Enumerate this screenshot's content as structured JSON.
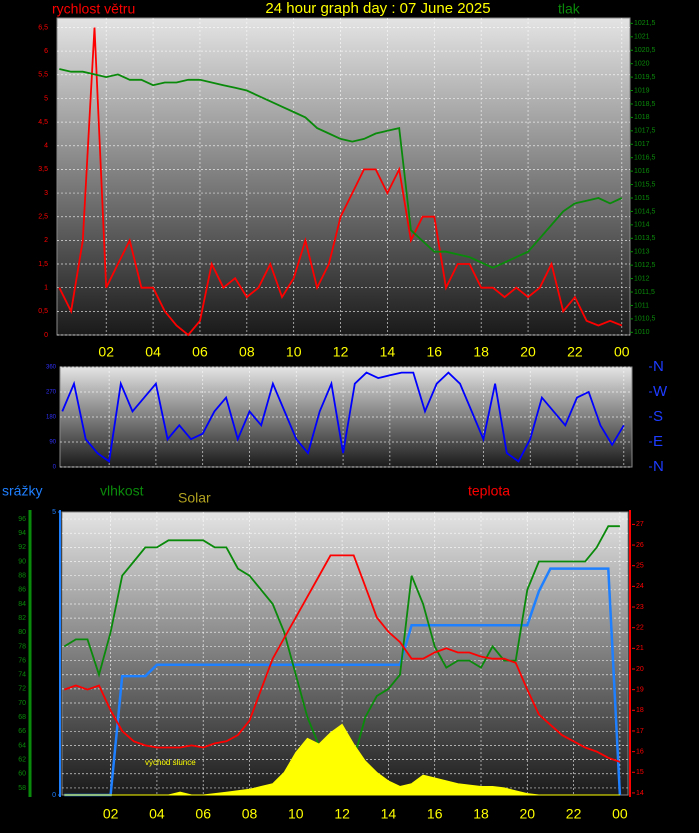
{
  "chart_data": [
    {
      "type": "line",
      "title": "24 hour graph day : 07 June 2025",
      "grid": true,
      "x": [
        0,
        0.5,
        1,
        1.5,
        2,
        2.5,
        3,
        3.5,
        4,
        4.5,
        5,
        5.5,
        6,
        6.5,
        7,
        7.5,
        8,
        8.5,
        9,
        9.5,
        10,
        10.5,
        11,
        11.5,
        12,
        12.5,
        13,
        13.5,
        14,
        14.5,
        15,
        15.5,
        16,
        16.5,
        17,
        17.5,
        18,
        18.5,
        19,
        19.5,
        20,
        20.5,
        21,
        21.5,
        22,
        22.5,
        23,
        23.5,
        24
      ],
      "xlim": [
        -0.1,
        24.35
      ],
      "xticks": [
        {
          "value": 2,
          "label": "02"
        },
        {
          "value": 4,
          "label": "04"
        },
        {
          "value": 6,
          "label": "06"
        },
        {
          "value": 8,
          "label": "08"
        },
        10,
        12,
        14,
        16,
        18,
        20,
        22,
        {
          "value": 24,
          "label": "00"
        }
      ],
      "ylim": [
        0,
        6.7
      ],
      "yticks": [
        0,
        {
          "value": 0.5,
          "label": "0,5"
        },
        1,
        {
          "value": 1.5,
          "label": "1,5"
        },
        2,
        {
          "value": 2.5,
          "label": "2,5"
        },
        3,
        {
          "value": 3.5,
          "label": "3,5"
        },
        4,
        {
          "value": 4.5,
          "label": "4,5"
        },
        5,
        {
          "value": 5.5,
          "label": "5,5"
        },
        6,
        {
          "value": 6.5,
          "label": "6,5"
        }
      ],
      "y2lim": [
        1009.9,
        1021.7
      ],
      "y2ticks": [
        1010,
        {
          "value": 1010.5,
          "label": "1010,5"
        },
        1011,
        {
          "value": 1011.5,
          "label": "1011,5"
        },
        1012,
        {
          "value": 1012.5,
          "label": "1012,5"
        },
        1013,
        {
          "value": 1013.5,
          "label": "1013,5"
        },
        1014,
        {
          "value": 1014.5,
          "label": "1014,5"
        },
        1015,
        {
          "value": 1015.5,
          "label": "1015,5"
        },
        1016,
        {
          "value": 1016.5,
          "label": "1016,5"
        },
        1017,
        {
          "value": 1017.5,
          "label": "1017,5"
        },
        1018,
        {
          "value": 1018.5,
          "label": "1018,5"
        },
        1019,
        {
          "value": 1019.5,
          "label": "1019,5"
        },
        1020,
        {
          "value": 1020.5,
          "label": "1020,5"
        },
        1021,
        {
          "value": 1021.5,
          "label": "1021,5"
        }
      ],
      "series": [
        {
          "name": "rychlost větru",
          "color": "#ff0000",
          "values": [
            1,
            0.5,
            2,
            6.5,
            1,
            1.5,
            2,
            1,
            1,
            0.5,
            0.2,
            0,
            0.3,
            1.5,
            1,
            1.2,
            0.8,
            1,
            1.5,
            0.8,
            1.2,
            2,
            1,
            1.5,
            2.5,
            3,
            3.5,
            3.5,
            3,
            3.5,
            2,
            2.5,
            2.5,
            1,
            1.5,
            1.5,
            1,
            1,
            0.8,
            1,
            0.8,
            1,
            1.5,
            0.5,
            0.8,
            0.3,
            0.2,
            0.3,
            0.2
          ]
        },
        {
          "name": "tlak",
          "color": "#0a8a0a",
          "axis": "y2",
          "values": [
            1019.8,
            1019.7,
            1019.7,
            1019.6,
            1019.5,
            1019.6,
            1019.4,
            1019.4,
            1019.2,
            1019.3,
            1019.3,
            1019.4,
            1019.4,
            1019.3,
            1019.2,
            1019.1,
            1019,
            1018.8,
            1018.6,
            1018.4,
            1018.2,
            1018,
            1017.6,
            1017.4,
            1017.2,
            1017.1,
            1017.2,
            1017.4,
            1017.5,
            1017.6,
            1013.8,
            1013.4,
            1013,
            1013,
            1012.9,
            1012.8,
            1012.6,
            1012.4,
            1012.6,
            1012.8,
            1013,
            1013.5,
            1014,
            1014.5,
            1014.8,
            1014.9,
            1015,
            1014.8,
            1015
          ]
        }
      ]
    },
    {
      "type": "line",
      "grid": true,
      "x": [
        0,
        0.5,
        1,
        1.5,
        2,
        2.5,
        3,
        3.5,
        4,
        4.5,
        5,
        5.5,
        6,
        6.5,
        7,
        7.5,
        8,
        8.5,
        9,
        9.5,
        10,
        10.5,
        11,
        11.5,
        12,
        12.5,
        13,
        13.5,
        14,
        14.5,
        15,
        15.5,
        16,
        16.5,
        17,
        17.5,
        18,
        18.5,
        19,
        19.5,
        20,
        20.5,
        21,
        21.5,
        22,
        22.5,
        23,
        23.5,
        24
      ],
      "xlim": [
        -0.1,
        24.35
      ],
      "xticks": [
        {
          "value": 2,
          "label": "02"
        },
        {
          "value": 4,
          "label": "04"
        },
        {
          "value": 6,
          "label": "06"
        },
        {
          "value": 8,
          "label": "08"
        },
        10,
        12,
        14,
        16,
        18,
        20,
        22,
        {
          "value": 24,
          "label": "00"
        }
      ],
      "ylim": [
        0,
        360
      ],
      "yticks": [
        0,
        90,
        180,
        270,
        360
      ],
      "y2lim": [
        0,
        360
      ],
      "y2ticks": [
        {
          "value": 360,
          "label": "N"
        },
        {
          "value": 270,
          "label": "W"
        },
        {
          "value": 180,
          "label": "S"
        },
        {
          "value": 90,
          "label": "E"
        },
        {
          "value": 0,
          "label": "N"
        }
      ],
      "series": [
        {
          "color": "#0000ff",
          "values": [
            200,
            300,
            100,
            50,
            20,
            300,
            200,
            250,
            300,
            100,
            150,
            100,
            120,
            200,
            250,
            100,
            200,
            150,
            300,
            200,
            100,
            50,
            200,
            300,
            50,
            300,
            340,
            320,
            330,
            340,
            340,
            200,
            300,
            340,
            300,
            200,
            100,
            300,
            50,
            20,
            100,
            250,
            200,
            150,
            250,
            270,
            150,
            80,
            150
          ]
        }
      ]
    },
    {
      "type": "line",
      "grid": true,
      "annotation": "východ slunce",
      "x": [
        0,
        0.5,
        1,
        1.5,
        2,
        2.5,
        3,
        3.5,
        4,
        4.5,
        5,
        5.5,
        6,
        6.5,
        7,
        7.5,
        8,
        8.5,
        9,
        9.5,
        10,
        10.5,
        11,
        11.5,
        12,
        12.5,
        13,
        13.5,
        14,
        14.5,
        15,
        15.5,
        16,
        16.5,
        17,
        17.5,
        18,
        18.5,
        19,
        19.5,
        20,
        20.5,
        21,
        21.5,
        22,
        22.5,
        23,
        23.5,
        24
      ],
      "xlim": [
        -0.1,
        24.35
      ],
      "xticks": [
        {
          "value": 2,
          "label": "02"
        },
        {
          "value": 4,
          "label": "04"
        },
        {
          "value": 6,
          "label": "06"
        },
        {
          "value": 8,
          "label": "08"
        },
        10,
        12,
        14,
        16,
        18,
        20,
        22,
        {
          "value": 24,
          "label": "00"
        }
      ],
      "ylim": [
        57,
        97
      ],
      "yticks": [
        58,
        60,
        62,
        64,
        66,
        68,
        70,
        72,
        74,
        76,
        78,
        80,
        82,
        84,
        86,
        88,
        90,
        92,
        94,
        96
      ],
      "y2lim": [
        13.9,
        27.6
      ],
      "y2ticks": [
        14,
        15,
        16,
        17,
        18,
        19,
        20,
        21,
        22,
        23,
        24,
        25,
        26,
        27
      ],
      "y3lim": [
        0,
        5
      ],
      "y3ticks": [
        0,
        5
      ],
      "y4lim": [
        0,
        1000
      ],
      "series": [
        {
          "name": "srážky",
          "color": "#1e7fff",
          "axis": "y3",
          "values": [
            0,
            0,
            0,
            0,
            0,
            2.1,
            2.1,
            2.1,
            2.3,
            2.3,
            2.3,
            2.3,
            2.3,
            2.3,
            2.3,
            2.3,
            2.3,
            2.3,
            2.3,
            2.3,
            2.3,
            2.3,
            2.3,
            2.3,
            2.3,
            2.3,
            2.3,
            2.3,
            2.3,
            2.3,
            3,
            3,
            3,
            3,
            3,
            3,
            3,
            3,
            3,
            3,
            3,
            3.6,
            4,
            4,
            4,
            4,
            4,
            4,
            0
          ]
        },
        {
          "name": "vlhkost",
          "color": "#0a8a0a",
          "values": [
            78,
            79,
            79,
            74,
            80,
            88,
            90,
            92,
            92,
            93,
            93,
            93,
            93,
            92,
            92,
            89,
            88,
            86,
            84,
            80,
            74,
            68,
            64,
            62,
            60,
            62,
            68,
            71,
            72,
            74,
            88,
            84,
            78,
            75,
            76,
            76,
            75,
            78,
            76,
            76,
            86,
            90,
            90,
            90,
            90,
            90,
            92,
            95,
            95
          ]
        },
        {
          "name": "Solar",
          "color": "#ffff00",
          "axis": "y4",
          "values": [
            0,
            0,
            0,
            0,
            0,
            0,
            0,
            0,
            0,
            0,
            10,
            0,
            0,
            5,
            10,
            15,
            20,
            30,
            40,
            80,
            150,
            200,
            180,
            220,
            250,
            180,
            120,
            80,
            50,
            30,
            40,
            70,
            60,
            50,
            40,
            35,
            30,
            30,
            25,
            15,
            5,
            0,
            0,
            0,
            0,
            0,
            0,
            0,
            0
          ]
        },
        {
          "name": "teplota",
          "color": "#ff0000",
          "axis": "y2",
          "values": [
            19,
            19.2,
            19,
            19.2,
            18,
            17,
            16.5,
            16.3,
            16.2,
            16.2,
            16.2,
            16.3,
            16.2,
            16.4,
            16.5,
            16.8,
            17.5,
            19,
            20.5,
            21.5,
            22.5,
            23.5,
            24.5,
            25.5,
            25.5,
            25.5,
            24,
            22.5,
            21.8,
            21.3,
            20.5,
            20.5,
            20.8,
            21,
            20.8,
            20.8,
            20.6,
            20.5,
            20.5,
            20.3,
            19,
            17.8,
            17.3,
            16.8,
            16.5,
            16.2,
            16,
            15.7,
            15.5
          ]
        }
      ]
    }
  ]
}
